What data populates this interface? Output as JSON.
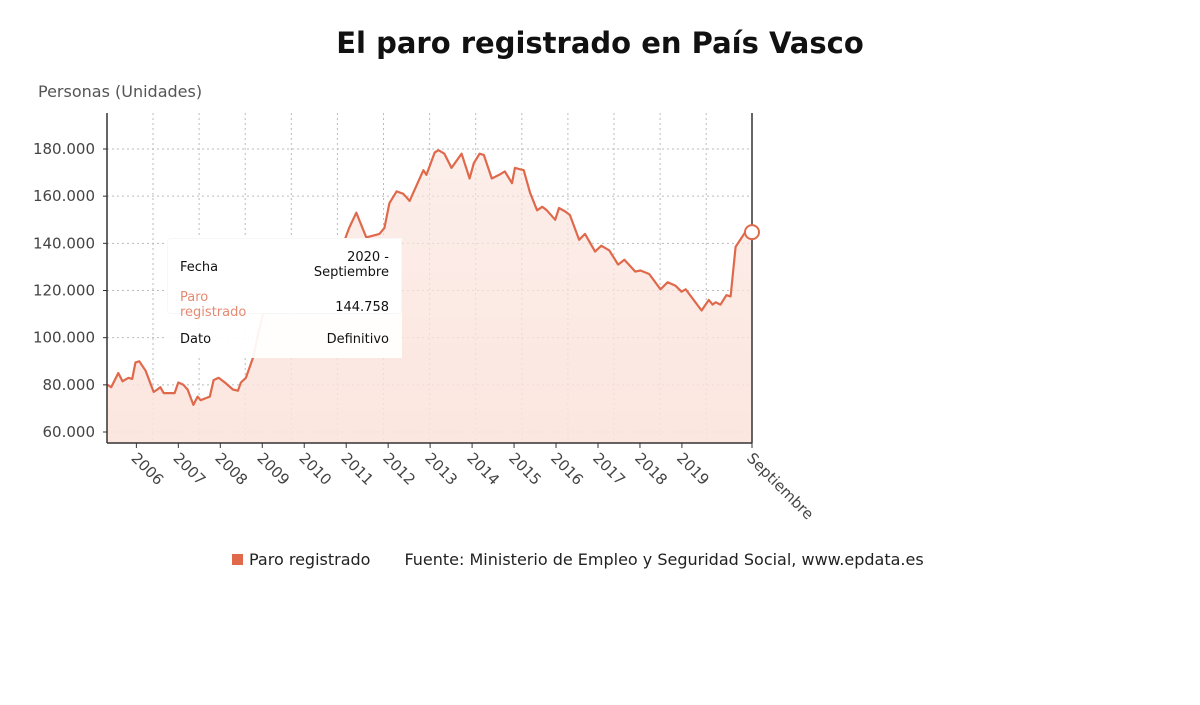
{
  "chart_data": {
    "type": "area",
    "title": "El paro registrado en País Vasco",
    "ylabel": "Personas (Unidades)",
    "xlabel": "",
    "ylim": [
      55000,
      195000
    ],
    "xlim": [
      2005.3,
      2020.67
    ],
    "yticks": [
      60000,
      80000,
      100000,
      120000,
      140000,
      160000,
      180000
    ],
    "ytick_labels": [
      "60.000",
      "80.000",
      "100.000",
      "120.000",
      "140.000",
      "160.000",
      "180.000"
    ],
    "xticks": [
      {
        "x": 2006,
        "label": "2006"
      },
      {
        "x": 2007,
        "label": "2007"
      },
      {
        "x": 2008,
        "label": "2008"
      },
      {
        "x": 2009,
        "label": "2009"
      },
      {
        "x": 2010,
        "label": "2010"
      },
      {
        "x": 2011,
        "label": "2011"
      },
      {
        "x": 2012,
        "label": "2012"
      },
      {
        "x": 2013,
        "label": "2013"
      },
      {
        "x": 2014,
        "label": "2014"
      },
      {
        "x": 2015,
        "label": "2015"
      },
      {
        "x": 2016,
        "label": "2016"
      },
      {
        "x": 2017,
        "label": "2017"
      },
      {
        "x": 2018,
        "label": "2018"
      },
      {
        "x": 2019,
        "label": "2019"
      },
      {
        "x": 2020.67,
        "label": "Septiembre"
      }
    ],
    "grid": true,
    "series": [
      {
        "name": "Paro registrado",
        "color": "#e0694b",
        "points": [
          [
            2005.31,
            80000
          ],
          [
            2005.4,
            79000
          ],
          [
            2005.57,
            85000
          ],
          [
            2005.67,
            81500
          ],
          [
            2005.81,
            83000
          ],
          [
            2005.9,
            82500
          ],
          [
            2005.98,
            89500
          ],
          [
            2006.07,
            90000
          ],
          [
            2006.22,
            86000
          ],
          [
            2006.41,
            77000
          ],
          [
            2006.5,
            78000
          ],
          [
            2006.57,
            79000
          ],
          [
            2006.65,
            76500
          ],
          [
            2006.91,
            76500
          ],
          [
            2007.0,
            81000
          ],
          [
            2007.12,
            80000
          ],
          [
            2007.22,
            78000
          ],
          [
            2007.36,
            71500
          ],
          [
            2007.46,
            75000
          ],
          [
            2007.53,
            73500
          ],
          [
            2007.75,
            75000
          ],
          [
            2007.84,
            82000
          ],
          [
            2007.96,
            83000
          ],
          [
            2008.11,
            81000
          ],
          [
            2008.3,
            78000
          ],
          [
            2008.42,
            77500
          ],
          [
            2008.49,
            81000
          ],
          [
            2008.61,
            83000
          ],
          [
            2008.78,
            91500
          ],
          [
            2008.92,
            103000
          ],
          [
            2009.16,
            121000
          ],
          [
            2009.25,
            122500
          ],
          [
            2009.44,
            116500
          ],
          [
            2009.85,
            126500
          ],
          [
            2010.16,
            138000
          ],
          [
            2010.4,
            128500
          ],
          [
            2010.83,
            135000
          ],
          [
            2011.07,
            146500
          ],
          [
            2011.24,
            153000
          ],
          [
            2011.48,
            142500
          ],
          [
            2011.79,
            144000
          ],
          [
            2011.91,
            146500
          ],
          [
            2012.03,
            157000
          ],
          [
            2012.2,
            162000
          ],
          [
            2012.36,
            161000
          ],
          [
            2012.51,
            158000
          ],
          [
            2012.84,
            171000
          ],
          [
            2012.91,
            169000
          ],
          [
            2013.11,
            178500
          ],
          [
            2013.2,
            179500
          ],
          [
            2013.34,
            178000
          ],
          [
            2013.51,
            172000
          ],
          [
            2013.75,
            178000
          ],
          [
            2013.94,
            167500
          ],
          [
            2014.04,
            174000
          ],
          [
            2014.18,
            178000
          ],
          [
            2014.28,
            177500
          ],
          [
            2014.47,
            167500
          ],
          [
            2014.64,
            169000
          ],
          [
            2014.78,
            170500
          ],
          [
            2014.95,
            165500
          ],
          [
            2015.02,
            172000
          ],
          [
            2015.23,
            171000
          ],
          [
            2015.38,
            161500
          ],
          [
            2015.55,
            154000
          ],
          [
            2015.67,
            155500
          ],
          [
            2015.78,
            154000
          ],
          [
            2015.98,
            150000
          ],
          [
            2016.07,
            155000
          ],
          [
            2016.22,
            153500
          ],
          [
            2016.33,
            152000
          ],
          [
            2016.55,
            141500
          ],
          [
            2016.69,
            144000
          ],
          [
            2016.93,
            136500
          ],
          [
            2017.08,
            139000
          ],
          [
            2017.27,
            137000
          ],
          [
            2017.48,
            131000
          ],
          [
            2017.63,
            133000
          ],
          [
            2017.89,
            128000
          ],
          [
            2018.01,
            128500
          ],
          [
            2018.22,
            127000
          ],
          [
            2018.49,
            120500
          ],
          [
            2018.66,
            123500
          ],
          [
            2018.85,
            122000
          ],
          [
            2018.99,
            119500
          ],
          [
            2019.09,
            120500
          ],
          [
            2019.47,
            111500
          ],
          [
            2019.64,
            116000
          ],
          [
            2019.73,
            114000
          ],
          [
            2019.8,
            115000
          ],
          [
            2019.92,
            114000
          ],
          [
            2020.06,
            118000
          ],
          [
            2020.16,
            117500
          ],
          [
            2020.28,
            138500
          ],
          [
            2020.5,
            144500
          ],
          [
            2020.67,
            144758
          ]
        ]
      }
    ],
    "legend": {
      "position": "bottom",
      "label": "Paro registrado"
    },
    "source": "Fuente: Ministerio de Empleo y Seguridad Social, www.epdata.es",
    "tooltip": {
      "fecha_label": "Fecha",
      "fecha_value_1": "2020 -",
      "fecha_value_2": "Septiembre",
      "paro_label_1": "Paro",
      "paro_label_2": "registrado",
      "paro_value": "144.758",
      "dato_label": "Dato",
      "dato_value": "Definitivo"
    }
  }
}
